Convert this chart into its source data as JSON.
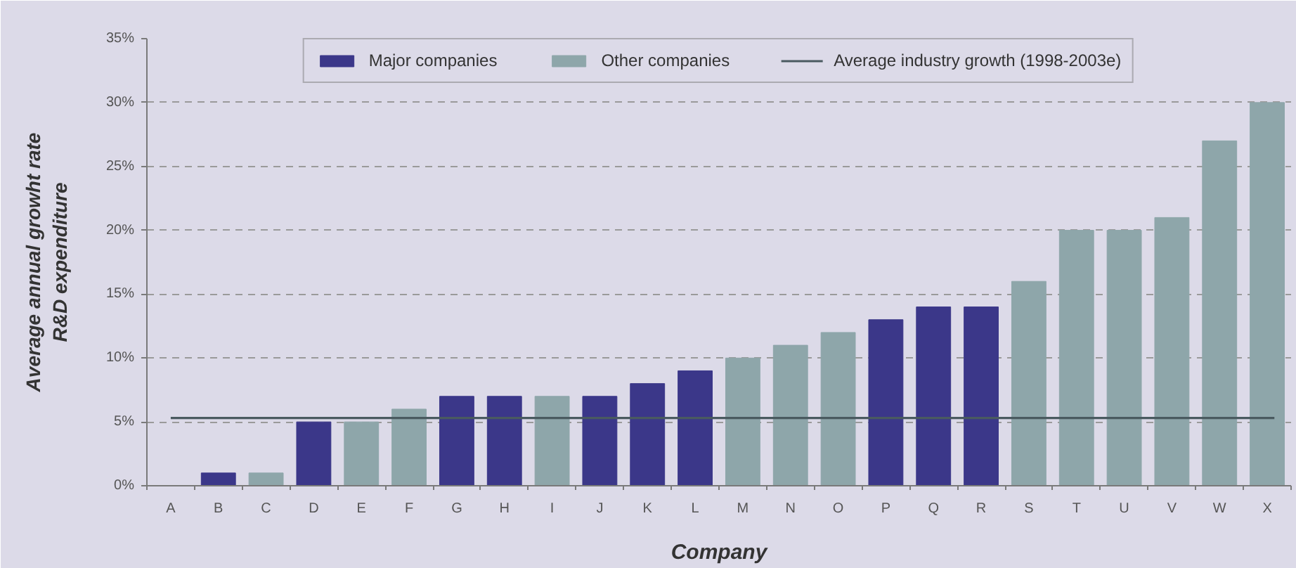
{
  "chart_data": {
    "type": "bar",
    "stacked": true,
    "xlabel": "Company",
    "ylabel": "Average annual growht rate\nR&D expenditure",
    "categories": [
      "A",
      "B",
      "C",
      "D",
      "E",
      "F",
      "G",
      "H",
      "I",
      "J",
      "K",
      "L",
      "M",
      "N",
      "O",
      "P",
      "Q",
      "R",
      "S",
      "T",
      "U",
      "V",
      "W",
      "X"
    ],
    "series": [
      {
        "name": "Major companies",
        "color": "#3b3789",
        "values": [
          null,
          1,
          null,
          5,
          null,
          null,
          7,
          7,
          null,
          7,
          8,
          9,
          null,
          null,
          null,
          13,
          14,
          14,
          null,
          null,
          null,
          null,
          null,
          null
        ]
      },
      {
        "name": "Other companies",
        "color": "#8ea6aa",
        "values": [
          null,
          null,
          1,
          null,
          5,
          6,
          null,
          null,
          7,
          null,
          null,
          null,
          10,
          11,
          12,
          null,
          null,
          null,
          16,
          20,
          20,
          21,
          27,
          30
        ]
      }
    ],
    "ref_lines": [
      {
        "axis": "y",
        "value": 5.3,
        "label": "Average industry growth (1998-2003e)",
        "color": "#4a5a60"
      }
    ],
    "ylim": [
      0,
      35
    ],
    "yticks": [
      {
        "value": 0,
        "label": "0%"
      },
      {
        "value": 5,
        "label": "5%"
      },
      {
        "value": 10,
        "label": "10%"
      },
      {
        "value": 15,
        "label": "15%"
      },
      {
        "value": 20,
        "label": "20%"
      },
      {
        "value": 25,
        "label": "25%"
      },
      {
        "value": 30,
        "label": "30%"
      },
      {
        "value": 35,
        "label": "35%"
      }
    ],
    "grid": "y",
    "legend": "top"
  }
}
